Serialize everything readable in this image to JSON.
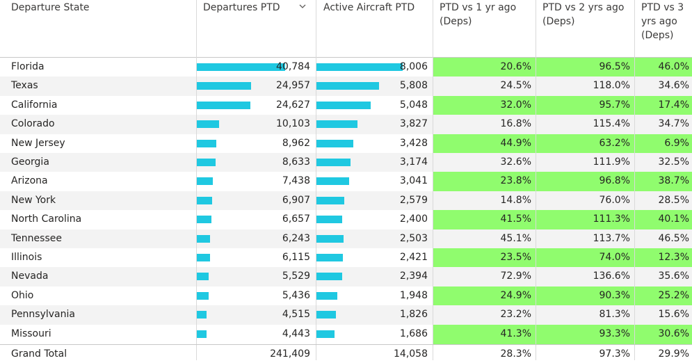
{
  "headers": {
    "state": "Departure State",
    "departures": "Departures PTD",
    "aircraft": "Active Aircraft PTD",
    "vs1": "PTD vs 1 yr ago (Deps)",
    "vs2": "PTD vs 2 yrs ago (Deps)",
    "vs3": "PTD vs 3 yrs ago (Deps)"
  },
  "rows": [
    {
      "state": "Florida",
      "departures": "40,784",
      "aircraft": "8,006",
      "vs1": "20.6%",
      "vs2": "96.5%",
      "vs3": "46.0%"
    },
    {
      "state": "Texas",
      "departures": "24,957",
      "aircraft": "5,808",
      "vs1": "24.5%",
      "vs2": "118.0%",
      "vs3": "34.6%"
    },
    {
      "state": "California",
      "departures": "24,627",
      "aircraft": "5,048",
      "vs1": "32.0%",
      "vs2": "95.7%",
      "vs3": "17.4%"
    },
    {
      "state": "Colorado",
      "departures": "10,103",
      "aircraft": "3,827",
      "vs1": "16.8%",
      "vs2": "115.4%",
      "vs3": "34.7%"
    },
    {
      "state": "New Jersey",
      "departures": "8,962",
      "aircraft": "3,428",
      "vs1": "44.9%",
      "vs2": "63.2%",
      "vs3": "6.9%"
    },
    {
      "state": "Georgia",
      "departures": "8,633",
      "aircraft": "3,174",
      "vs1": "32.6%",
      "vs2": "111.9%",
      "vs3": "32.5%"
    },
    {
      "state": "Arizona",
      "departures": "7,438",
      "aircraft": "3,041",
      "vs1": "23.8%",
      "vs2": "96.8%",
      "vs3": "38.7%"
    },
    {
      "state": "New York",
      "departures": "6,907",
      "aircraft": "2,579",
      "vs1": "14.8%",
      "vs2": "76.0%",
      "vs3": "28.5%"
    },
    {
      "state": "North Carolina",
      "departures": "6,657",
      "aircraft": "2,400",
      "vs1": "41.5%",
      "vs2": "111.3%",
      "vs3": "40.1%"
    },
    {
      "state": "Tennessee",
      "departures": "6,243",
      "aircraft": "2,503",
      "vs1": "45.1%",
      "vs2": "113.7%",
      "vs3": "46.5%"
    },
    {
      "state": "Illinois",
      "departures": "6,115",
      "aircraft": "2,421",
      "vs1": "23.5%",
      "vs2": "74.0%",
      "vs3": "12.3%"
    },
    {
      "state": "Nevada",
      "departures": "5,529",
      "aircraft": "2,394",
      "vs1": "72.9%",
      "vs2": "136.6%",
      "vs3": "35.6%"
    },
    {
      "state": "Ohio",
      "departures": "5,436",
      "aircraft": "1,948",
      "vs1": "24.9%",
      "vs2": "90.3%",
      "vs3": "25.2%"
    },
    {
      "state": "Pennsylvania",
      "departures": "4,515",
      "aircraft": "1,826",
      "vs1": "23.2%",
      "vs2": "81.3%",
      "vs3": "15.6%"
    },
    {
      "state": "Missouri",
      "departures": "4,443",
      "aircraft": "1,686",
      "vs1": "41.3%",
      "vs2": "93.3%",
      "vs3": "30.6%"
    }
  ],
  "total": {
    "label": "Grand Total",
    "departures": "241,409",
    "aircraft": "14,058",
    "vs1": "28.3%",
    "vs2": "97.3%",
    "vs3": "29.9%"
  },
  "colors": {
    "bar": "#1fc8e1",
    "highlight": "#90fc6e",
    "row_alt": "#f3f3f3"
  },
  "icons": {
    "sort": "chevron-down-icon"
  }
}
